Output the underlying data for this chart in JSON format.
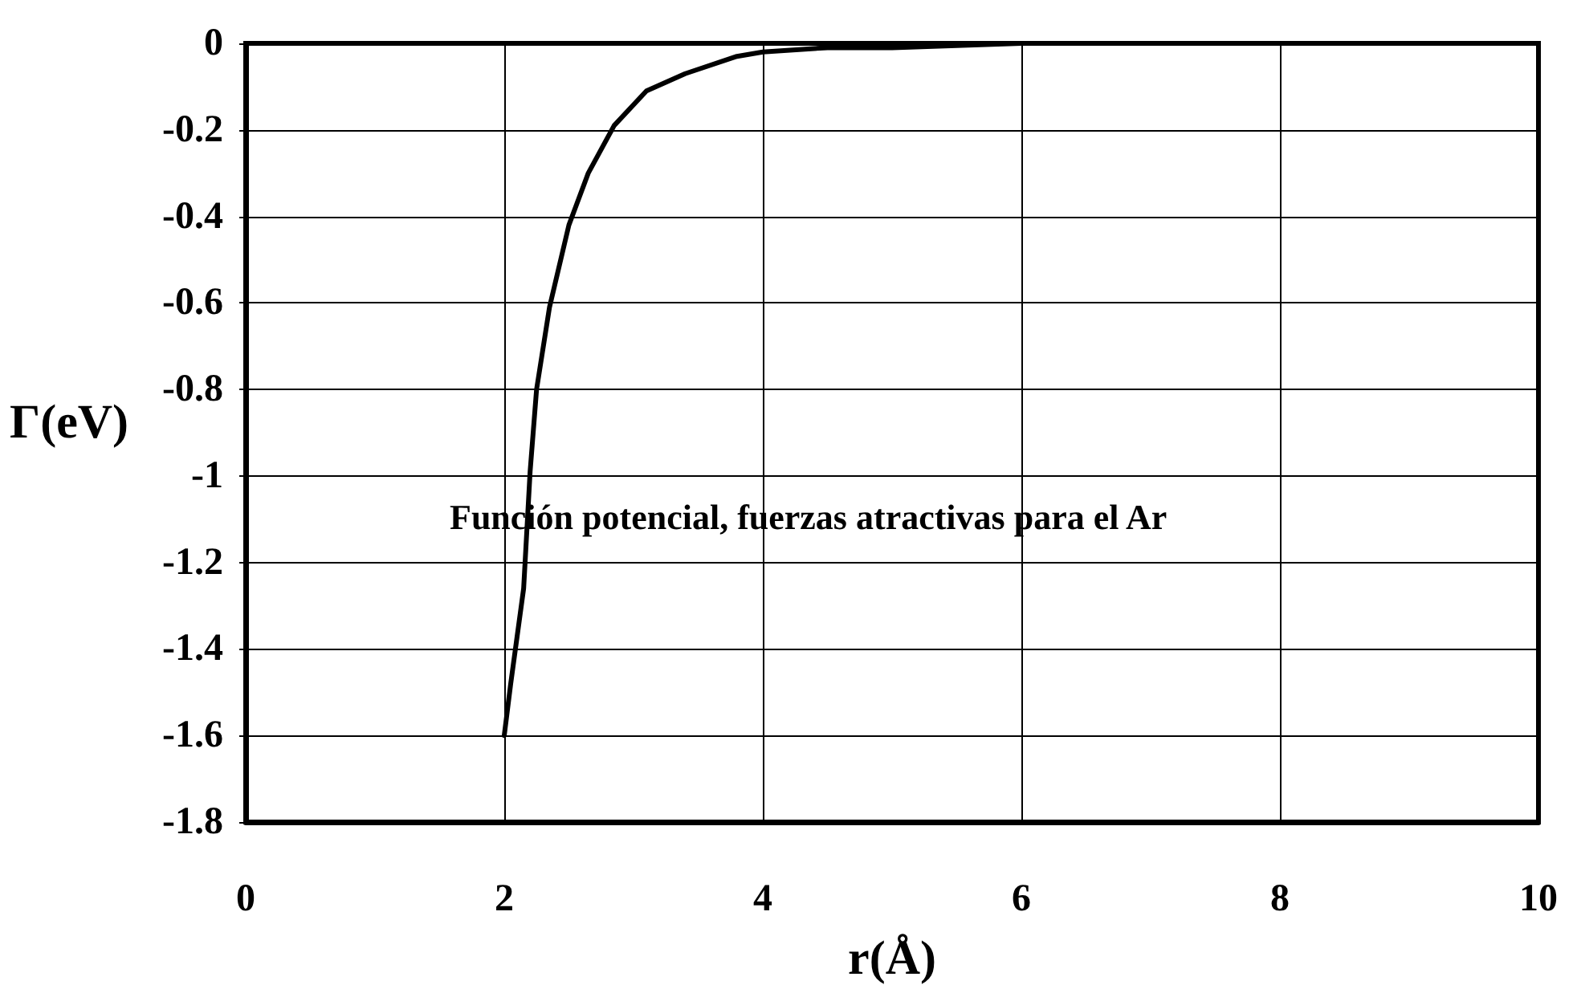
{
  "chart_data": {
    "type": "line",
    "xlabel": "r(Å)",
    "ylabel": "Γ(eV)",
    "annotations": [
      "Función potencial, fuerzas atractivas para el Ar"
    ],
    "x": [
      2,
      2.05,
      2.1,
      2.15,
      2.2,
      2.25,
      2.35,
      2.5,
      2.65,
      2.85,
      3.1,
      3.4,
      3.8,
      4,
      4.5,
      5,
      6,
      7,
      8,
      9,
      10
    ],
    "series": [
      {
        "color": "#000000",
        "values": [
          -1.6,
          -1.48,
          -1.37,
          -1.26,
          -0.99,
          -0.8,
          -0.61,
          -0.42,
          -0.3,
          -0.19,
          -0.11,
          -0.07,
          -0.03,
          -0.02,
          -0.01,
          -0.01,
          0,
          0,
          0,
          0,
          0
        ]
      }
    ],
    "xlim": [
      0,
      10
    ],
    "xticks": [
      0,
      2,
      4,
      6,
      8,
      10
    ],
    "ylim": [
      -1.8,
      0
    ],
    "yticks": [
      -1.8,
      -1.6,
      -1.4,
      -1.2,
      -1,
      -0.8,
      -0.6,
      -0.4,
      -0.2,
      0
    ],
    "grid": true,
    "marker": "none",
    "line_style": "solid"
  }
}
